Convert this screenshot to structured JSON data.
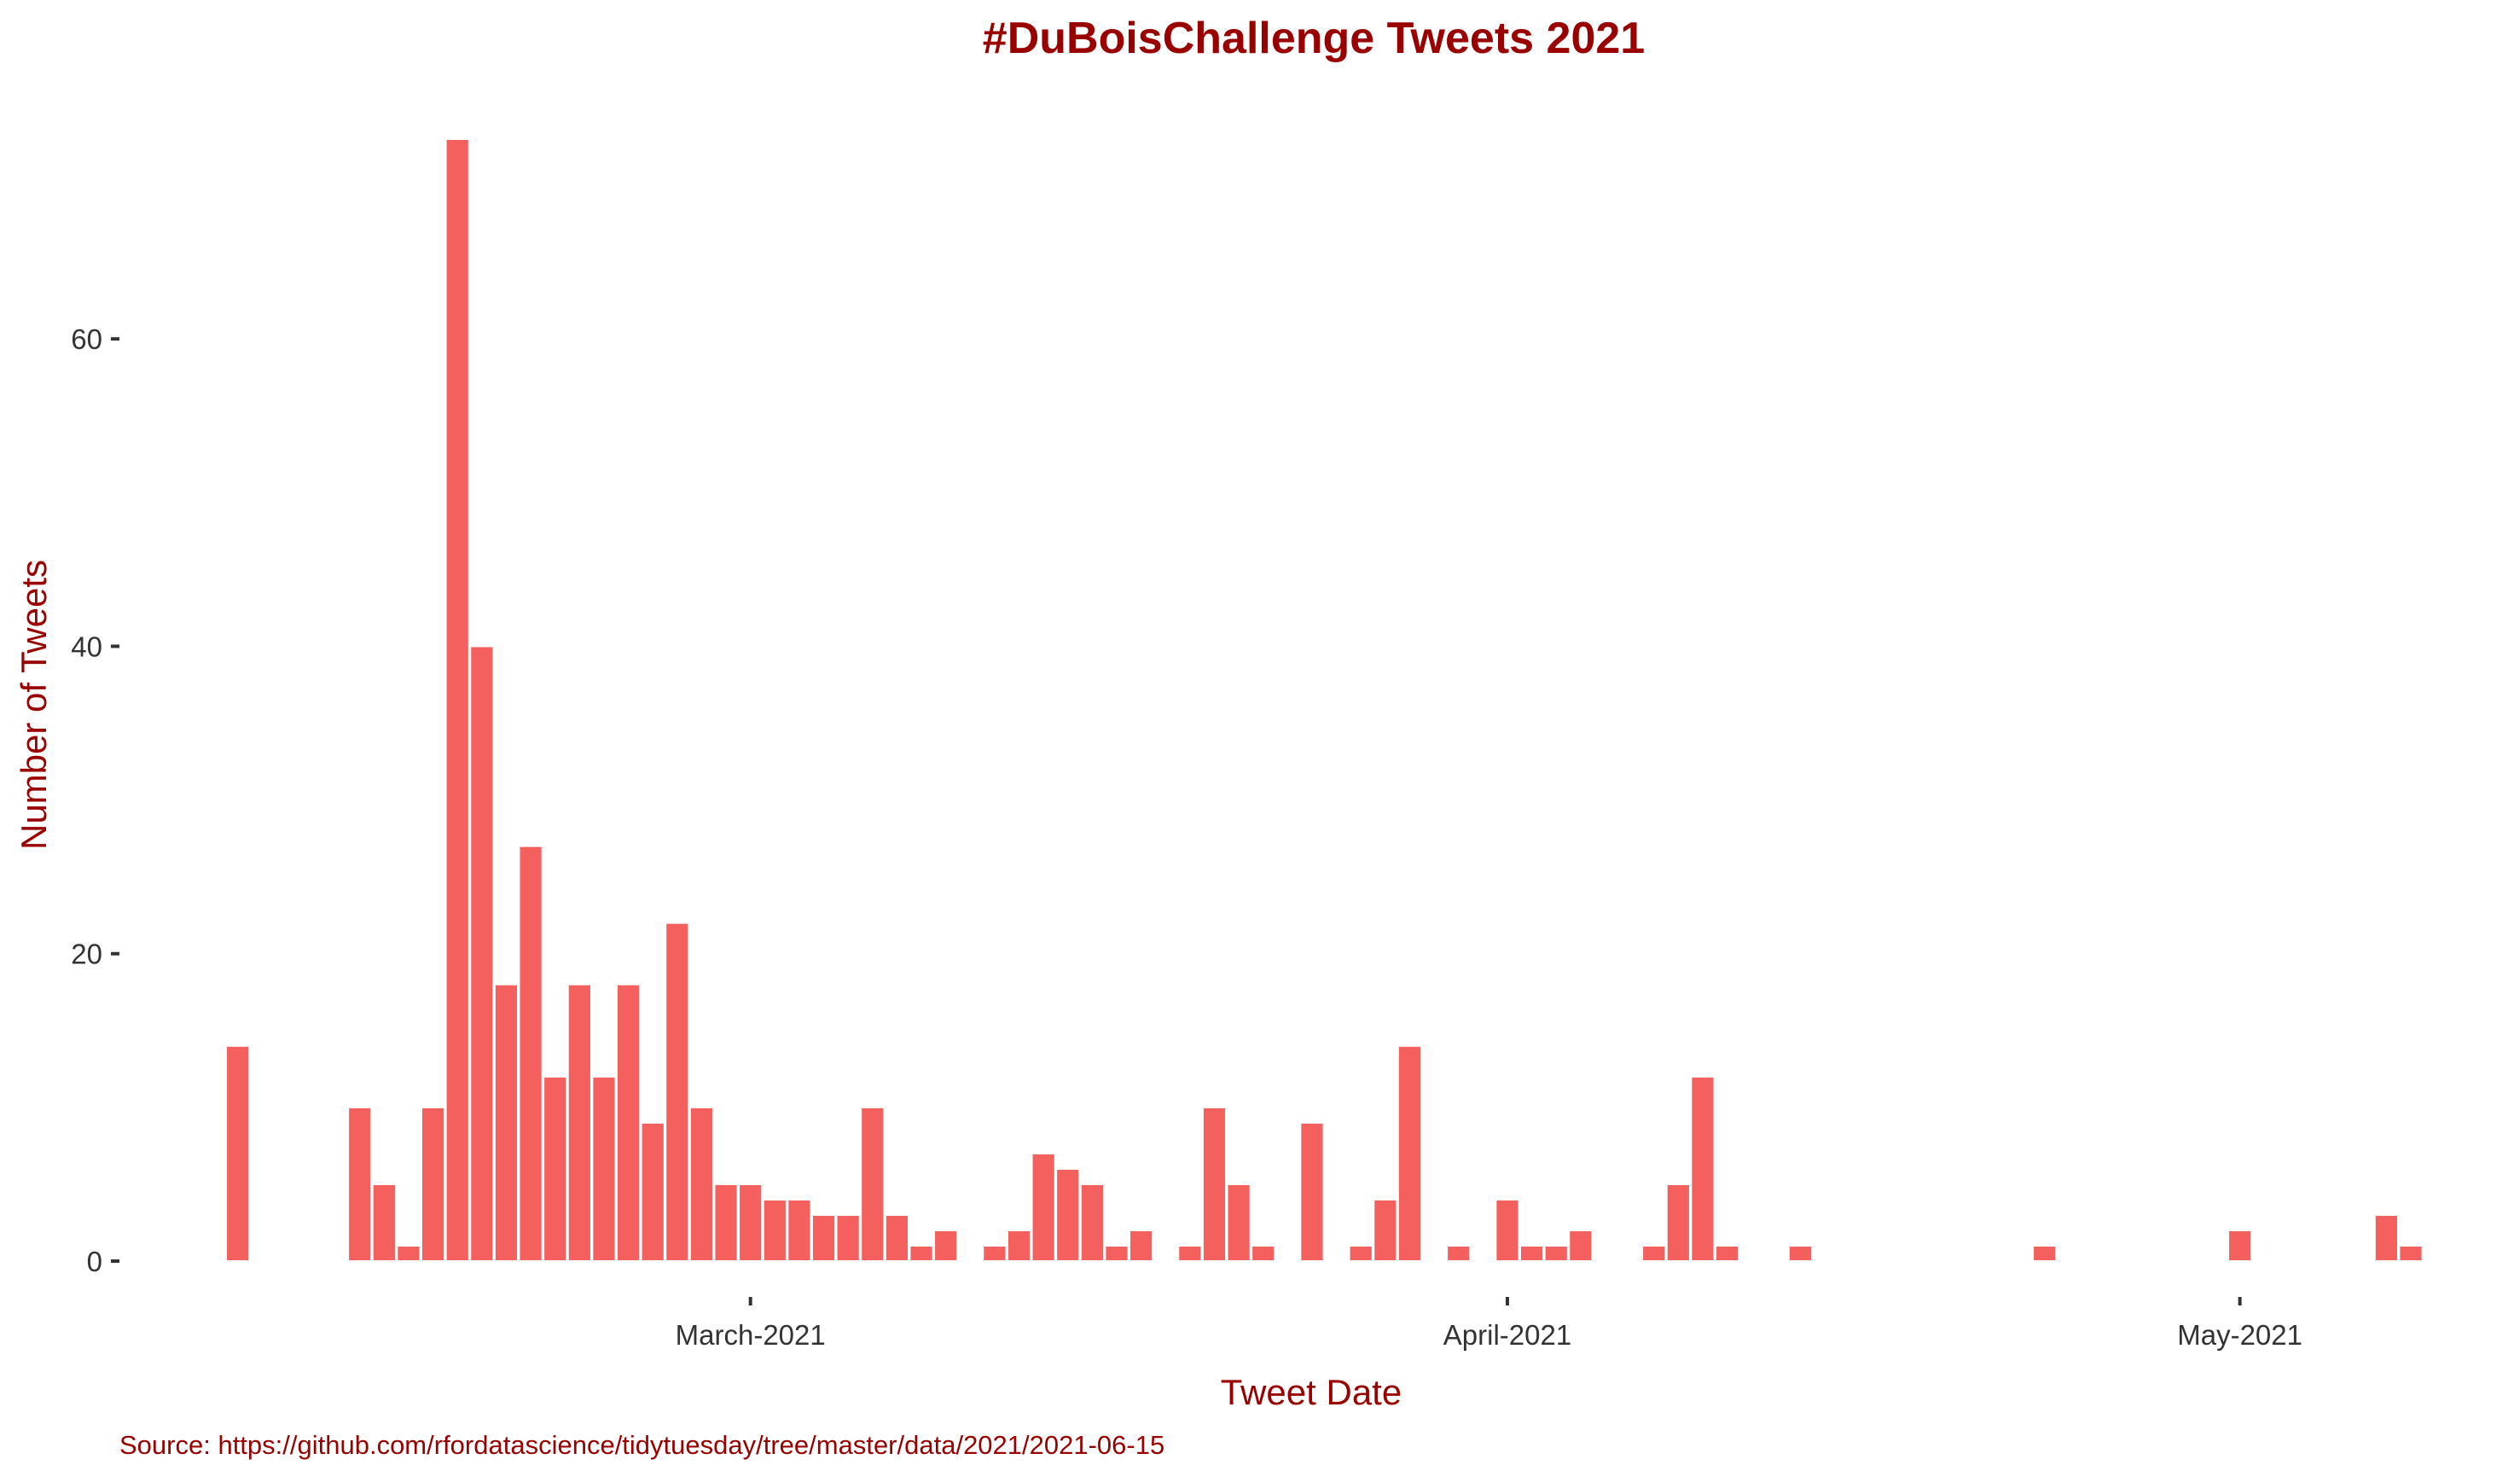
{
  "chart_data": {
    "type": "bar",
    "title": "#DuBoisChallenge Tweets 2021",
    "xlabel": "Tweet Date",
    "ylabel": "Number of Tweets",
    "caption": "Source: https://github.com/rfordatascience/tidytuesday/tree/master/data/2021/2021-06-15",
    "bar_color": "#f3605e",
    "text_color": "#990000",
    "grid": false,
    "legend": "none",
    "ylim": [
      0,
      73
    ],
    "xlim": [
      "2021-02-07",
      "2021-05-08"
    ],
    "y_ticks": [
      0,
      20,
      40,
      60
    ],
    "x_ticks": [
      {
        "date": "2021-03-01",
        "label": "March-2021"
      },
      {
        "date": "2021-04-01",
        "label": "April-2021"
      },
      {
        "date": "2021-05-01",
        "label": "May-2021"
      }
    ],
    "x": [
      "2021-02-08",
      "2021-02-13",
      "2021-02-14",
      "2021-02-15",
      "2021-02-16",
      "2021-02-17",
      "2021-02-18",
      "2021-02-19",
      "2021-02-20",
      "2021-02-21",
      "2021-02-22",
      "2021-02-23",
      "2021-02-24",
      "2021-02-25",
      "2021-02-26",
      "2021-02-27",
      "2021-02-28",
      "2021-03-01",
      "2021-03-02",
      "2021-03-03",
      "2021-03-04",
      "2021-03-05",
      "2021-03-06",
      "2021-03-07",
      "2021-03-08",
      "2021-03-09",
      "2021-03-11",
      "2021-03-12",
      "2021-03-13",
      "2021-03-14",
      "2021-03-15",
      "2021-03-16",
      "2021-03-17",
      "2021-03-19",
      "2021-03-20",
      "2021-03-21",
      "2021-03-22",
      "2021-03-24",
      "2021-03-26",
      "2021-03-27",
      "2021-03-28",
      "2021-03-30",
      "2021-04-01",
      "2021-04-02",
      "2021-04-03",
      "2021-04-04",
      "2021-04-07",
      "2021-04-08",
      "2021-04-09",
      "2021-04-10",
      "2021-04-13",
      "2021-04-23",
      "2021-05-01",
      "2021-05-07",
      "2021-05-08"
    ],
    "values": [
      14,
      10,
      5,
      1,
      10,
      73,
      40,
      18,
      27,
      12,
      18,
      12,
      18,
      9,
      22,
      10,
      5,
      5,
      4,
      4,
      3,
      3,
      10,
      3,
      1,
      2,
      1,
      2,
      7,
      6,
      5,
      1,
      2,
      1,
      10,
      5,
      1,
      9,
      1,
      4,
      14,
      1,
      4,
      1,
      1,
      2,
      1,
      5,
      12,
      1,
      1,
      1,
      2,
      3,
      1
    ]
  }
}
